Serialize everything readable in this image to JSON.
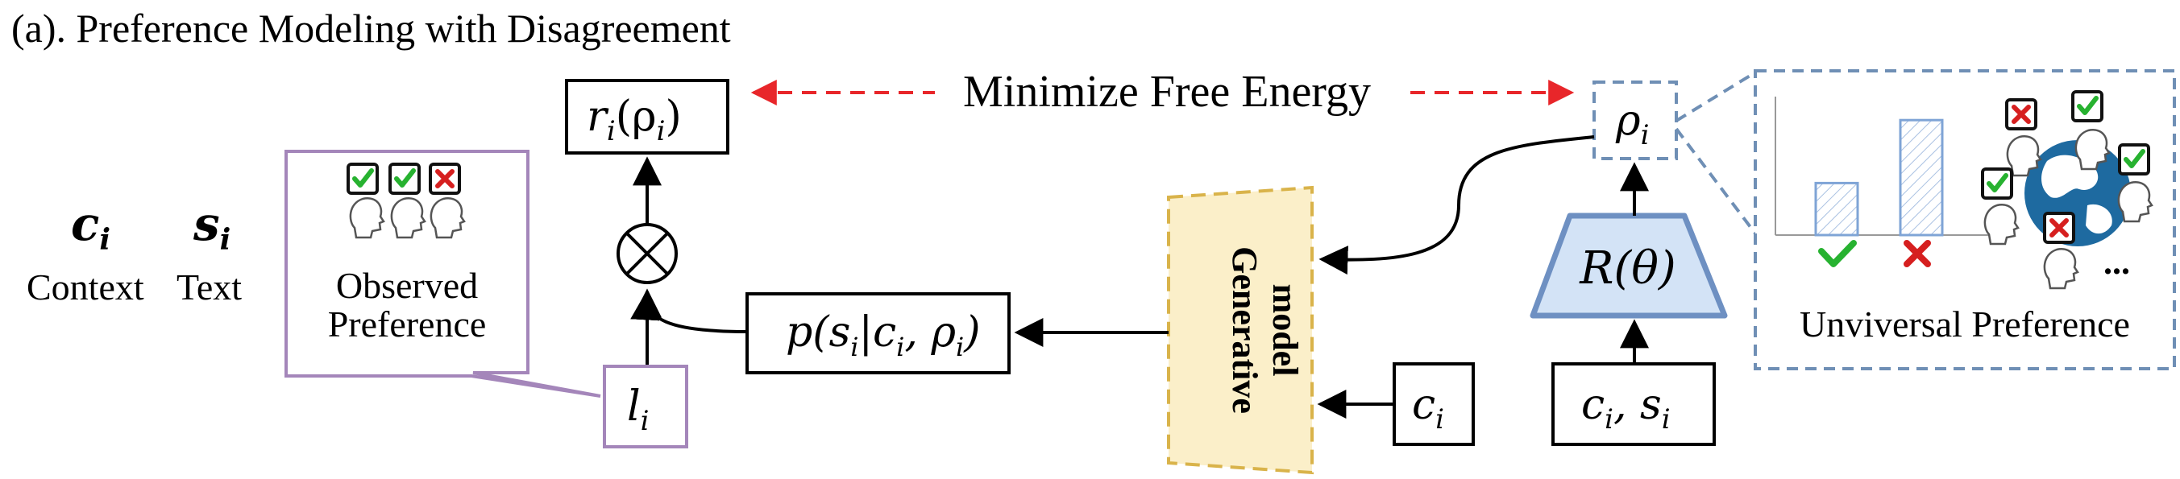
{
  "title": "(a). Preference Modeling with Disagreement",
  "labels": {
    "minimize": "Minimize Free Energy",
    "reward": "r",
    "reward_sub": "i",
    "reward_arg": "(ρ",
    "reward_arg_sub": "i",
    "reward_close": ")",
    "rho": "ρ",
    "rho_sub": "i",
    "context_var": "c",
    "context_sub": "i",
    "context_label": "Context",
    "text_var": "s",
    "text_sub": "i",
    "text_label": "Text",
    "observed_line1": "Observed",
    "observed_line2": "Preference",
    "likelihood_l": "l",
    "likelihood_l_sub": "i",
    "likelihood_p_open": "p(s",
    "likelihood_p_sub1": "i",
    "likelihood_p_mid": "|c",
    "likelihood_p_sub2": "i",
    "likelihood_p_mid2": ", ρ",
    "likelihood_p_sub3": "i",
    "likelihood_p_close": ")",
    "generative_line1": "Generative",
    "generative_line2": "model",
    "ci_var": "c",
    "ci_sub": "i",
    "R_theta": "R(θ)",
    "cs_c": "c",
    "cs_c_sub": "i",
    "cs_comma": ", s",
    "cs_s_sub": "i",
    "universal": "Unviversal Preference",
    "ellipsis": "..."
  },
  "colors": {
    "red_arrow": "#e8262a",
    "purple": "#a486ba",
    "dashed_blue": "#6f8fb5",
    "R_fill": "#d3e3f6",
    "R_stroke": "#6e90c2",
    "gen_fill": "#fbefc9",
    "gen_stroke": "#d9b34a",
    "check": "#27b230",
    "cross": "#d61f1f",
    "bar_blue": "#7fa4d6",
    "globe": "#1e6aa0"
  },
  "mini_chart": {
    "type": "bar",
    "categories": [
      "check",
      "cross"
    ],
    "values": [
      0.38,
      0.84
    ]
  }
}
